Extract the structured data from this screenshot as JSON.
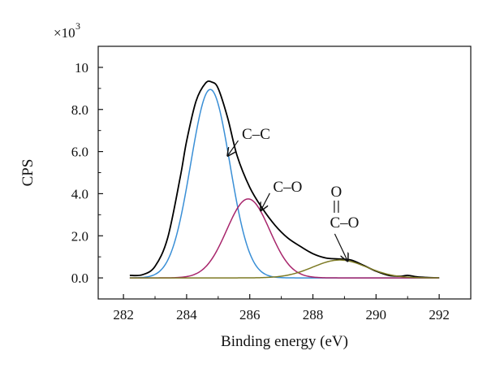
{
  "chart_data": {
    "type": "line",
    "xlabel": "Binding energy (eV)",
    "ylabel": "CPS",
    "y_multiplier_label": "×10",
    "y_multiplier_exponent": "3",
    "xlim": [
      281.2,
      293.0
    ],
    "ylim": [
      -1.0,
      11.0
    ],
    "xticks": [
      282,
      284,
      286,
      288,
      290,
      292
    ],
    "xtick_labels": [
      "282",
      "284",
      "286",
      "288",
      "290",
      "292"
    ],
    "yticks": [
      0,
      2,
      4,
      6,
      8,
      10
    ],
    "ytick_labels": [
      "0.0",
      "2.0",
      "4.0",
      "6.0",
      "8.0",
      "10"
    ],
    "grid": false,
    "series": [
      {
        "color": "#000000",
        "x": [
          282.2,
          282.6,
          283.0,
          283.4,
          283.8,
          284.0,
          284.3,
          284.6,
          284.8,
          285.0,
          285.3,
          285.6,
          286.0,
          286.4,
          286.8,
          287.2,
          287.6,
          288.0,
          288.4,
          288.8,
          289.2,
          289.6,
          290.0,
          290.4,
          290.8,
          291.0,
          291.3,
          291.6,
          292.0
        ],
        "y": [
          0.12,
          0.15,
          0.55,
          1.9,
          4.8,
          6.5,
          8.4,
          9.25,
          9.3,
          9.0,
          7.6,
          5.8,
          4.3,
          3.3,
          2.5,
          1.9,
          1.5,
          1.15,
          0.95,
          0.9,
          0.85,
          0.6,
          0.32,
          0.12,
          0.08,
          0.12,
          0.05,
          0.02,
          0.0
        ]
      },
      {
        "name": "C–C",
        "color": "#3a8fd6",
        "peak_center": 284.75,
        "peak_height": 8.95,
        "peak_sigma": 0.62
      },
      {
        "name": "C–O",
        "color": "#a8266c",
        "peak_center": 285.95,
        "peak_height": 3.75,
        "peak_sigma": 0.68
      },
      {
        "name": "O=C–O",
        "color": "#7d7a24",
        "peak_center": 288.85,
        "peak_height": 0.85,
        "peak_sigma": 0.85
      }
    ],
    "annotations": [
      {
        "label": "C–C",
        "text_x": 286.2,
        "text_y": 6.6,
        "arrow_to_x": 285.3,
        "arrow_to_y": 5.8
      },
      {
        "label": "C–O",
        "text_x": 287.2,
        "text_y": 4.1,
        "arrow_to_x": 286.35,
        "arrow_to_y": 3.2
      },
      {
        "label": "C–O",
        "prefix": "O",
        "text_x": 289.0,
        "text_y": 2.4,
        "arrow_to_x": 289.1,
        "arrow_to_y": 0.8
      }
    ]
  }
}
